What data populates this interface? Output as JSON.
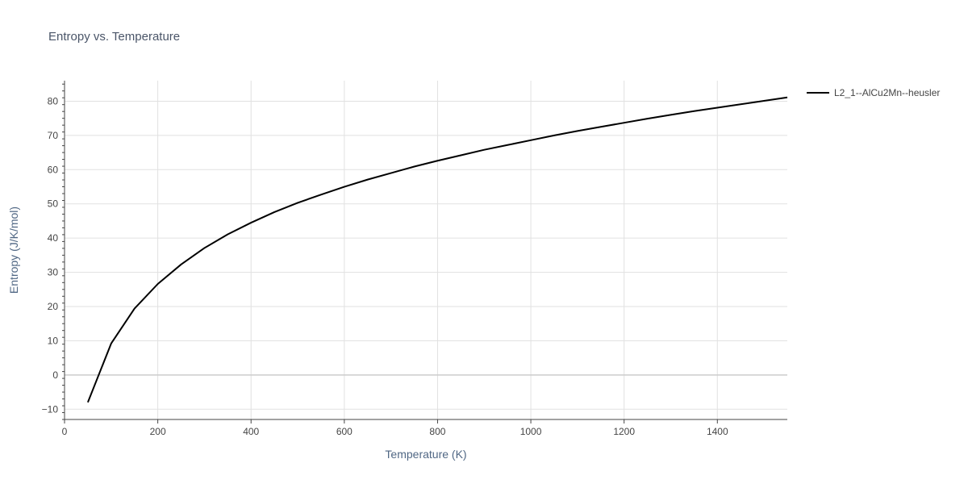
{
  "chart_data": {
    "type": "line",
    "title": "Entropy vs. Temperature",
    "xlabel": "Temperature (K)",
    "ylabel": "Entropy (J/K/mol)",
    "xlim": [
      0,
      1550
    ],
    "ylim": [
      -13,
      86
    ],
    "x_ticks": [
      0,
      200,
      400,
      600,
      800,
      1000,
      1200,
      1400
    ],
    "y_ticks": [
      -10,
      0,
      10,
      20,
      30,
      40,
      50,
      60,
      70,
      80
    ],
    "grid": true,
    "legend_position": "top-right-outside",
    "series": [
      {
        "name": "L2_1--AlCu2Mn--heusler",
        "color": "#000000",
        "x": [
          50,
          100,
          150,
          200,
          250,
          300,
          350,
          400,
          450,
          500,
          550,
          600,
          650,
          700,
          750,
          800,
          850,
          900,
          950,
          1000,
          1050,
          1100,
          1150,
          1200,
          1250,
          1300,
          1350,
          1400,
          1450,
          1500,
          1550
        ],
        "y": [
          -8,
          9.2,
          19.4,
          26.6,
          32.3,
          37.1,
          41.1,
          44.5,
          47.6,
          50.3,
          52.7,
          55.0,
          57.1,
          59.0,
          60.9,
          62.6,
          64.2,
          65.8,
          67.2,
          68.6,
          70.0,
          71.3,
          72.5,
          73.7,
          74.9,
          76.0,
          77.1,
          78.1,
          79.1,
          80.1,
          81.1
        ]
      }
    ]
  }
}
